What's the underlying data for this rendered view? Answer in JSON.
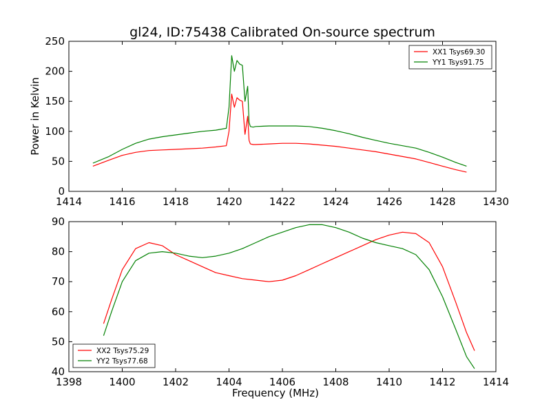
{
  "figure": {
    "title": "gl24, ID:75438 Calibrated On-source spectrum",
    "background": "#ffffff"
  },
  "chart_data": [
    {
      "type": "line",
      "title": "gl24, ID:75438 Calibrated On-source spectrum",
      "xlabel": "",
      "ylabel": "Power in Kelvin",
      "xlim": [
        1414,
        1430
      ],
      "ylim": [
        0,
        250
      ],
      "xticks": [
        1414,
        1416,
        1418,
        1420,
        1422,
        1424,
        1426,
        1428,
        1430
      ],
      "yticks": [
        0,
        50,
        100,
        150,
        200,
        250
      ],
      "grid": false,
      "legend_position": "top-right",
      "series": [
        {
          "name": "XX1 Tsys69.30",
          "color": "#ff0000",
          "x": [
            1414.9,
            1415.5,
            1416.0,
            1416.5,
            1417.0,
            1417.5,
            1418.0,
            1418.5,
            1419.0,
            1419.5,
            1419.9,
            1420.0,
            1420.1,
            1420.2,
            1420.3,
            1420.4,
            1420.5,
            1420.6,
            1420.7,
            1420.75,
            1420.8,
            1420.9,
            1421.0,
            1421.5,
            1422.0,
            1422.5,
            1423.0,
            1423.5,
            1424.0,
            1424.5,
            1425.0,
            1425.5,
            1426.0,
            1426.5,
            1427.0,
            1427.5,
            1428.0,
            1428.5,
            1428.9
          ],
          "values": [
            42,
            52,
            60,
            65,
            68,
            69,
            70,
            71,
            72,
            74,
            76,
            100,
            162,
            140,
            156,
            152,
            150,
            95,
            125,
            85,
            79,
            78,
            78,
            79,
            80,
            80,
            79,
            77,
            75,
            72,
            69,
            66,
            62,
            58,
            54,
            48,
            42,
            36,
            32
          ]
        },
        {
          "name": "YY1 Tsys91.75",
          "color": "#008000",
          "x": [
            1414.9,
            1415.5,
            1416.0,
            1416.5,
            1417.0,
            1417.5,
            1418.0,
            1418.5,
            1419.0,
            1419.5,
            1419.9,
            1420.0,
            1420.1,
            1420.2,
            1420.3,
            1420.4,
            1420.5,
            1420.6,
            1420.7,
            1420.75,
            1420.8,
            1420.9,
            1421.0,
            1421.5,
            1422.0,
            1422.5,
            1423.0,
            1423.5,
            1424.0,
            1424.5,
            1425.0,
            1425.5,
            1426.0,
            1426.5,
            1427.0,
            1427.5,
            1428.0,
            1428.5,
            1428.9
          ],
          "values": [
            47,
            58,
            70,
            80,
            87,
            91,
            94,
            97,
            100,
            102,
            105,
            140,
            226,
            200,
            218,
            212,
            210,
            150,
            175,
            115,
            108,
            107,
            108,
            109,
            109,
            109,
            108,
            105,
            101,
            96,
            90,
            85,
            80,
            76,
            72,
            65,
            57,
            48,
            42
          ]
        }
      ]
    },
    {
      "type": "line",
      "title": "",
      "xlabel": "Frequency (MHz)",
      "ylabel": "",
      "xlim": [
        1398,
        1414
      ],
      "ylim": [
        40,
        90
      ],
      "xticks": [
        1398,
        1400,
        1402,
        1404,
        1406,
        1408,
        1410,
        1412,
        1414
      ],
      "yticks": [
        40,
        50,
        60,
        70,
        80,
        90
      ],
      "grid": false,
      "legend_position": "bottom-left",
      "series": [
        {
          "name": "XX2 Tsys75.29",
          "color": "#ff0000",
          "x": [
            1399.3,
            1399.6,
            1400.0,
            1400.5,
            1401.0,
            1401.5,
            1402.0,
            1402.5,
            1403.0,
            1403.5,
            1404.0,
            1404.5,
            1405.0,
            1405.5,
            1406.0,
            1406.5,
            1407.0,
            1407.5,
            1408.0,
            1408.5,
            1409.0,
            1409.5,
            1410.0,
            1410.5,
            1411.0,
            1411.5,
            1412.0,
            1412.5,
            1412.9,
            1413.2
          ],
          "values": [
            56,
            64,
            74,
            81,
            83,
            82,
            79,
            77,
            75,
            73,
            72,
            71,
            70.5,
            70,
            70.5,
            72,
            74,
            76,
            78,
            80,
            82,
            84,
            85.5,
            86.5,
            86,
            83,
            75,
            63,
            53,
            47
          ]
        },
        {
          "name": "YY2 Tsys77.68",
          "color": "#008000",
          "x": [
            1399.3,
            1399.6,
            1400.0,
            1400.5,
            1401.0,
            1401.5,
            1402.0,
            1402.5,
            1403.0,
            1403.5,
            1404.0,
            1404.5,
            1405.0,
            1405.5,
            1406.0,
            1406.5,
            1407.0,
            1407.5,
            1408.0,
            1408.5,
            1409.0,
            1409.5,
            1410.0,
            1410.5,
            1411.0,
            1411.5,
            1412.0,
            1412.5,
            1412.9,
            1413.2
          ],
          "values": [
            52,
            60,
            70,
            77,
            79.5,
            80,
            79.5,
            78.5,
            78,
            78.5,
            79.5,
            81,
            83,
            85,
            86.5,
            88,
            89,
            89,
            88,
            86.5,
            84.5,
            83,
            82,
            81,
            79,
            74,
            65,
            54,
            45,
            41
          ]
        }
      ]
    }
  ]
}
